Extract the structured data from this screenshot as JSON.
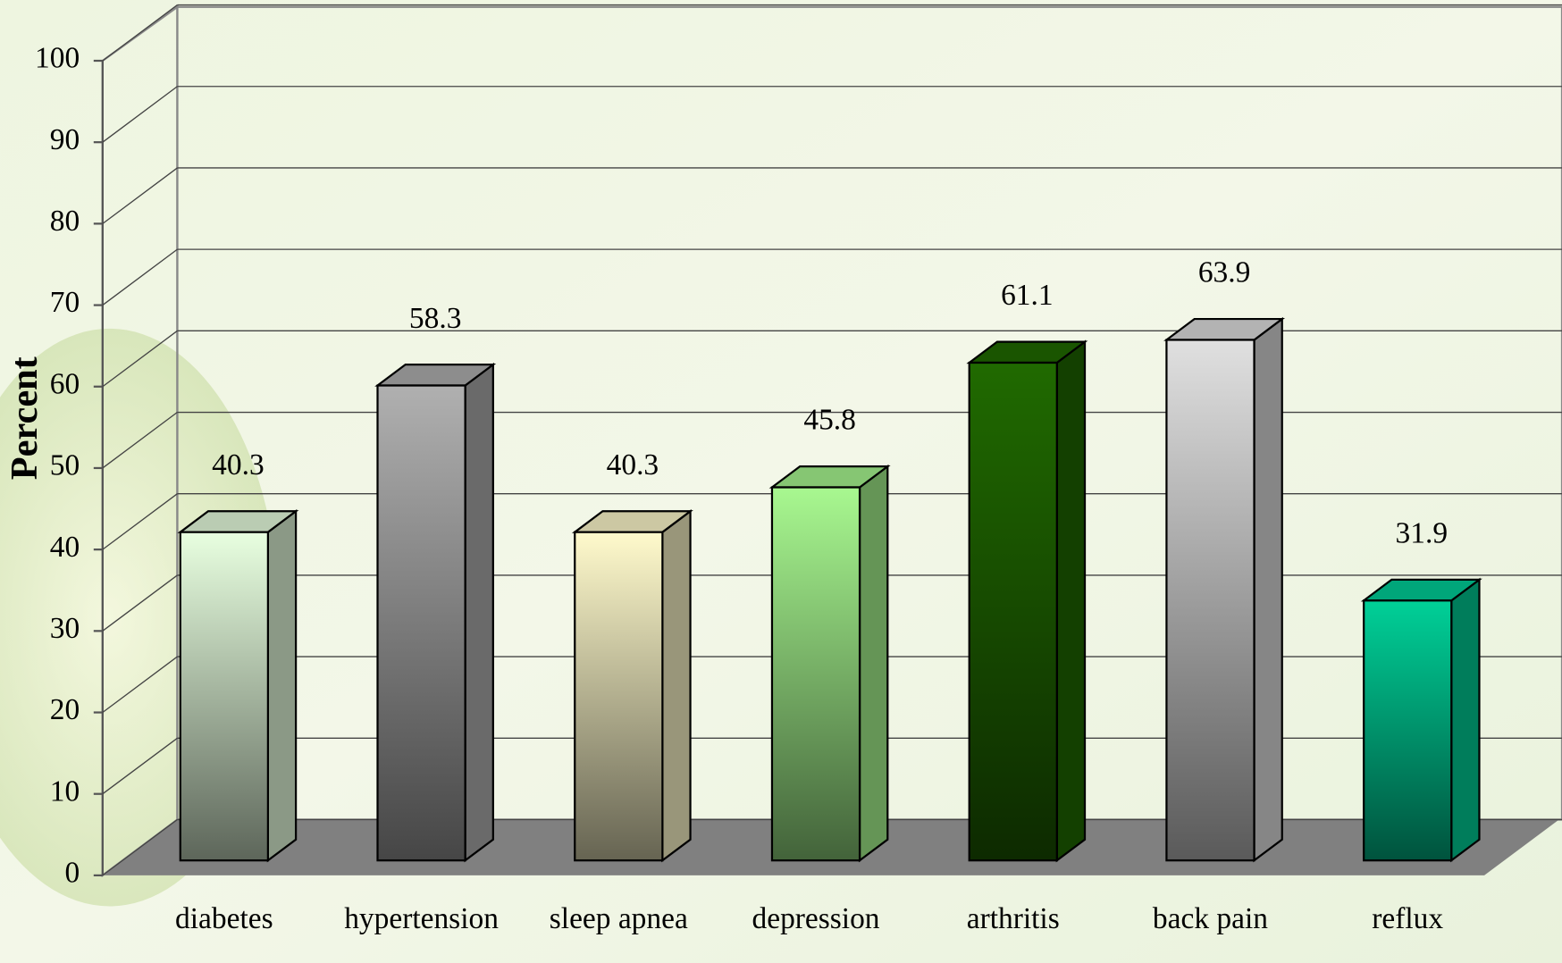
{
  "chart_data": {
    "type": "bar3d",
    "y_label": "Percent",
    "categories": [
      "diabetes",
      "hypertension",
      "sleep apnea",
      "depression",
      "arthritis",
      "back pain",
      "reflux"
    ],
    "values": [
      40.3,
      58.3,
      40.3,
      45.8,
      61.1,
      63.9,
      31.9
    ],
    "colors": [
      "#e8ffe0",
      "#b0b0b0",
      "#fffacc",
      "#a8f890",
      "#206a00",
      "#e0e0e0",
      "#00d098"
    ],
    "ylim": [
      0,
      100
    ],
    "yticks": [
      0,
      10,
      20,
      30,
      40,
      50,
      60,
      70,
      80,
      90,
      100
    ],
    "grid": true
  }
}
